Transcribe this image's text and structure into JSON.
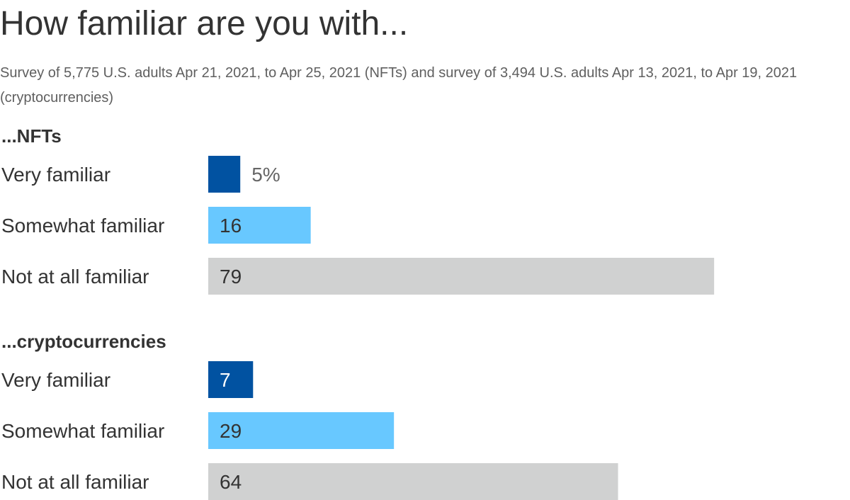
{
  "chart_data": {
    "type": "bar",
    "orientation": "horizontal",
    "title": "How familiar are you with...",
    "subtitle": "Survey of 5,775 U.S. adults Apr 21, 2021, to Apr 25, 2021 (NFTs) and survey of 3,494 U.S. adults Apr 13, 2021, to Apr 19, 2021 (cryptocurrencies)",
    "categories": [
      "Very familiar",
      "Somewhat familiar",
      "Not at all familiar"
    ],
    "groups": [
      {
        "name": "...NFTs",
        "values": [
          5,
          16,
          79
        ],
        "labels": [
          "5%",
          "16",
          "79"
        ]
      },
      {
        "name": "...cryptocurrencies",
        "values": [
          7,
          29,
          64
        ],
        "labels": [
          "7",
          "29",
          "64"
        ]
      }
    ],
    "colors": [
      "#0152a1",
      "#68c8ff",
      "#d0d1d1"
    ],
    "label_colors": {
      "inside_dark": "#ffffff",
      "inside_light": "#333333",
      "outside": "#666666"
    },
    "xlim": [
      0,
      100
    ],
    "unit": "%"
  }
}
